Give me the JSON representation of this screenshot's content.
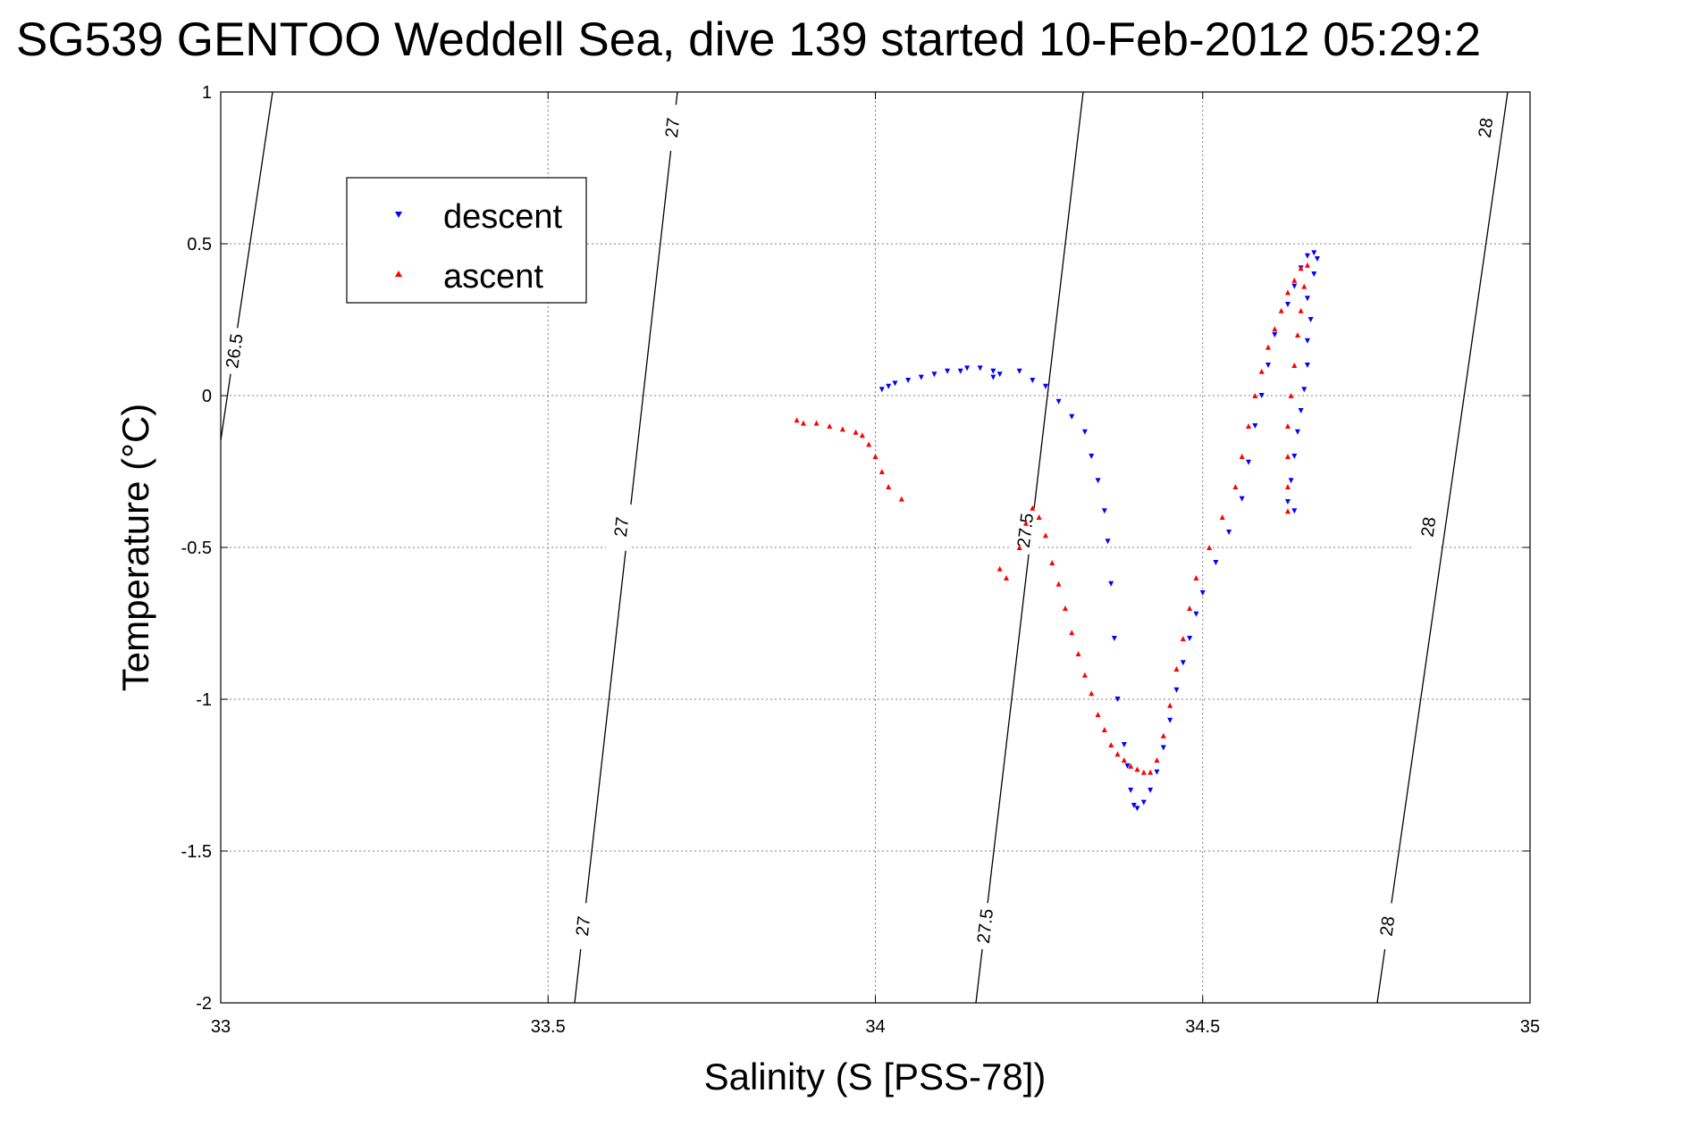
{
  "chart_data": {
    "type": "scatter",
    "title": "SG539 GENTOO Weddell Sea, dive 139 started 10-Feb-2012 05:29:2",
    "xlabel": "Salinity (S [PSS-78])",
    "ylabel": "Temperature (°C)",
    "xlim": [
      33,
      35
    ],
    "ylim": [
      -2,
      1
    ],
    "x_ticks": [
      33,
      33.5,
      34,
      34.5,
      35
    ],
    "x_tick_labels": [
      "33",
      "33.5",
      "34",
      "34.5",
      "35"
    ],
    "y_ticks": [
      -2,
      -1.5,
      -1,
      -0.5,
      0,
      0.5,
      1
    ],
    "y_tick_labels": [
      "-2",
      "-1.5",
      "-1",
      "-0.5",
      "0",
      "0.5",
      "1"
    ],
    "grid": true,
    "legend_position": "top-left",
    "colors": {
      "descent": "#0000ff",
      "ascent": "#ff0000",
      "isopycnal": "#000000"
    },
    "series": [
      {
        "name": "descent",
        "marker": "triangle-down",
        "color": "#0000ff",
        "points": [
          [
            34.01,
            0.02
          ],
          [
            34.02,
            0.03
          ],
          [
            34.03,
            0.04
          ],
          [
            34.05,
            0.05
          ],
          [
            34.07,
            0.06
          ],
          [
            34.09,
            0.07
          ],
          [
            34.11,
            0.08
          ],
          [
            34.13,
            0.08
          ],
          [
            34.14,
            0.09
          ],
          [
            34.16,
            0.09
          ],
          [
            34.18,
            0.08
          ],
          [
            34.19,
            0.07
          ],
          [
            34.18,
            0.06
          ],
          [
            34.22,
            0.08
          ],
          [
            34.24,
            0.05
          ],
          [
            34.26,
            0.03
          ],
          [
            34.28,
            -0.02
          ],
          [
            34.3,
            -0.07
          ],
          [
            34.32,
            -0.12
          ],
          [
            34.33,
            -0.2
          ],
          [
            34.34,
            -0.28
          ],
          [
            34.35,
            -0.38
          ],
          [
            34.355,
            -0.48
          ],
          [
            34.36,
            -0.62
          ],
          [
            34.365,
            -0.8
          ],
          [
            34.37,
            -1.0
          ],
          [
            34.38,
            -1.15
          ],
          [
            34.385,
            -1.22
          ],
          [
            34.39,
            -1.3
          ],
          [
            34.395,
            -1.35
          ],
          [
            34.4,
            -1.36
          ],
          [
            34.41,
            -1.34
          ],
          [
            34.42,
            -1.3
          ],
          [
            34.43,
            -1.24
          ],
          [
            34.44,
            -1.16
          ],
          [
            34.45,
            -1.07
          ],
          [
            34.46,
            -0.97
          ],
          [
            34.47,
            -0.88
          ],
          [
            34.48,
            -0.8
          ],
          [
            34.49,
            -0.72
          ],
          [
            34.5,
            -0.65
          ],
          [
            34.52,
            -0.55
          ],
          [
            34.54,
            -0.45
          ],
          [
            34.56,
            -0.34
          ],
          [
            34.57,
            -0.22
          ],
          [
            34.58,
            -0.1
          ],
          [
            34.59,
            0.0
          ],
          [
            34.6,
            0.1
          ],
          [
            34.61,
            0.2
          ],
          [
            34.63,
            0.3
          ],
          [
            34.64,
            0.36
          ],
          [
            34.65,
            0.42
          ],
          [
            34.66,
            0.46
          ],
          [
            34.67,
            0.47
          ],
          [
            34.675,
            0.45
          ],
          [
            34.67,
            0.4
          ],
          [
            34.66,
            0.32
          ],
          [
            34.665,
            0.25
          ],
          [
            34.66,
            0.18
          ],
          [
            34.66,
            0.1
          ],
          [
            34.655,
            0.02
          ],
          [
            34.65,
            -0.05
          ],
          [
            34.645,
            -0.12
          ],
          [
            34.64,
            -0.2
          ],
          [
            34.635,
            -0.28
          ],
          [
            34.63,
            -0.35
          ],
          [
            34.64,
            -0.38
          ]
        ]
      },
      {
        "name": "ascent",
        "marker": "triangle-up",
        "color": "#ff0000",
        "points": [
          [
            33.88,
            -0.08
          ],
          [
            33.89,
            -0.09
          ],
          [
            33.91,
            -0.09
          ],
          [
            33.93,
            -0.1
          ],
          [
            33.95,
            -0.11
          ],
          [
            33.97,
            -0.12
          ],
          [
            33.98,
            -0.13
          ],
          [
            33.99,
            -0.16
          ],
          [
            34.0,
            -0.2
          ],
          [
            34.01,
            -0.25
          ],
          [
            34.02,
            -0.3
          ],
          [
            34.04,
            -0.34
          ],
          [
            34.19,
            -0.57
          ],
          [
            34.2,
            -0.6
          ],
          [
            34.22,
            -0.5
          ],
          [
            34.23,
            -0.42
          ],
          [
            34.24,
            -0.37
          ],
          [
            34.25,
            -0.4
          ],
          [
            34.26,
            -0.46
          ],
          [
            34.27,
            -0.55
          ],
          [
            34.28,
            -0.62
          ],
          [
            34.29,
            -0.7
          ],
          [
            34.3,
            -0.78
          ],
          [
            34.31,
            -0.85
          ],
          [
            34.32,
            -0.92
          ],
          [
            34.33,
            -0.98
          ],
          [
            34.34,
            -1.05
          ],
          [
            34.35,
            -1.1
          ],
          [
            34.36,
            -1.15
          ],
          [
            34.37,
            -1.18
          ],
          [
            34.38,
            -1.2
          ],
          [
            34.39,
            -1.22
          ],
          [
            34.4,
            -1.23
          ],
          [
            34.41,
            -1.24
          ],
          [
            34.42,
            -1.24
          ],
          [
            34.43,
            -1.2
          ],
          [
            34.44,
            -1.12
          ],
          [
            34.45,
            -1.02
          ],
          [
            34.46,
            -0.9
          ],
          [
            34.47,
            -0.8
          ],
          [
            34.48,
            -0.7
          ],
          [
            34.49,
            -0.6
          ],
          [
            34.51,
            -0.5
          ],
          [
            34.53,
            -0.4
          ],
          [
            34.55,
            -0.3
          ],
          [
            34.56,
            -0.2
          ],
          [
            34.57,
            -0.1
          ],
          [
            34.58,
            0.0
          ],
          [
            34.59,
            0.08
          ],
          [
            34.6,
            0.16
          ],
          [
            34.61,
            0.22
          ],
          [
            34.62,
            0.28
          ],
          [
            34.63,
            0.34
          ],
          [
            34.64,
            0.38
          ],
          [
            34.65,
            0.42
          ],
          [
            34.66,
            0.43
          ],
          [
            34.655,
            0.36
          ],
          [
            34.65,
            0.28
          ],
          [
            34.645,
            0.2
          ],
          [
            34.64,
            0.1
          ],
          [
            34.635,
            0.0
          ],
          [
            34.63,
            -0.1
          ],
          [
            34.63,
            -0.2
          ],
          [
            34.63,
            -0.3
          ],
          [
            34.63,
            -0.38
          ]
        ]
      }
    ],
    "isopycnals": [
      {
        "value": 26.5,
        "labels": [
          "26.5"
        ]
      },
      {
        "value": 27,
        "labels": [
          "27",
          "27",
          "27"
        ]
      },
      {
        "value": 27.5,
        "labels": [
          "27.5",
          "27.5"
        ]
      },
      {
        "value": 28,
        "labels": [
          "28",
          "28",
          "28"
        ]
      }
    ]
  }
}
